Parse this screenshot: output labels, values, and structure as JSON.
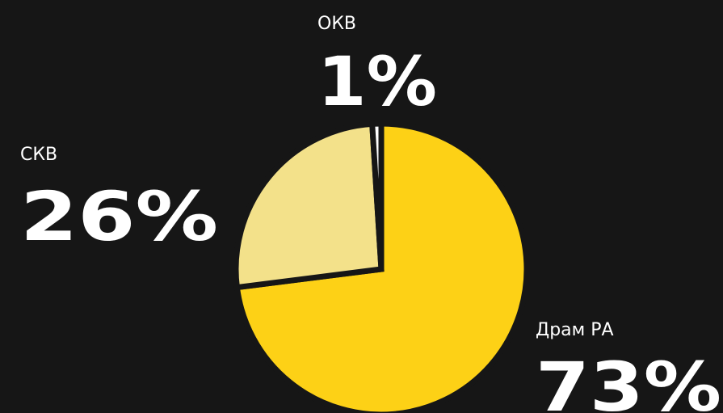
{
  "chart_data": {
    "type": "pie",
    "categories": [
      "Драм РА",
      "СКВ",
      "ОКВ"
    ],
    "values": [
      73,
      26,
      1
    ],
    "value_labels": [
      "73%",
      "26%",
      "1%"
    ],
    "colors": [
      "#fdd116",
      "#f3e18a",
      "#ffffff"
    ]
  }
}
